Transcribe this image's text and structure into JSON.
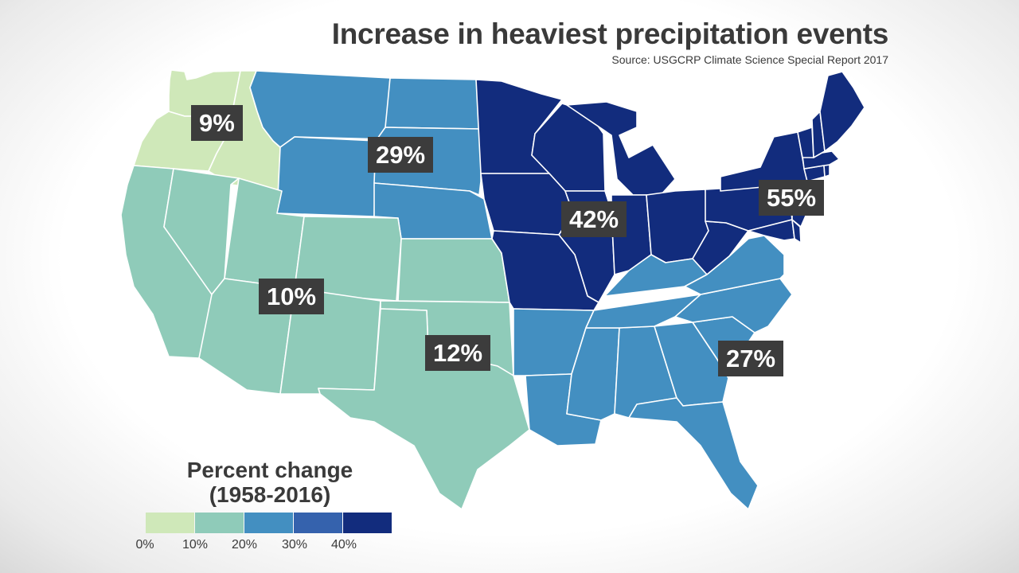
{
  "title": "Increase in heaviest precipitation events",
  "source": "Source: USGCRP Climate Science Special Report 2017",
  "legend": {
    "title_line1": "Percent change",
    "title_line2": "(1958-2016)",
    "ticks": [
      "0%",
      "10%",
      "20%",
      "30%",
      "40%"
    ],
    "colors": [
      "#cfe8b9",
      "#8fcbb9",
      "#438fc1",
      "#3562ad",
      "#122c7d"
    ]
  },
  "regions": {
    "northwest": {
      "label": "9%",
      "color": "#cfe8b9"
    },
    "northern_great_plains": {
      "label": "29%",
      "color": "#438fc1"
    },
    "southwest": {
      "label": "10%",
      "color": "#8fcbb9"
    },
    "southern_great_plains": {
      "label": "12%",
      "color": "#8fcbb9"
    },
    "midwest": {
      "label": "42%",
      "color": "#122c7d"
    },
    "northeast": {
      "label": "55%",
      "color": "#122c7d"
    },
    "southeast": {
      "label": "27%",
      "color": "#438fc1"
    }
  }
}
